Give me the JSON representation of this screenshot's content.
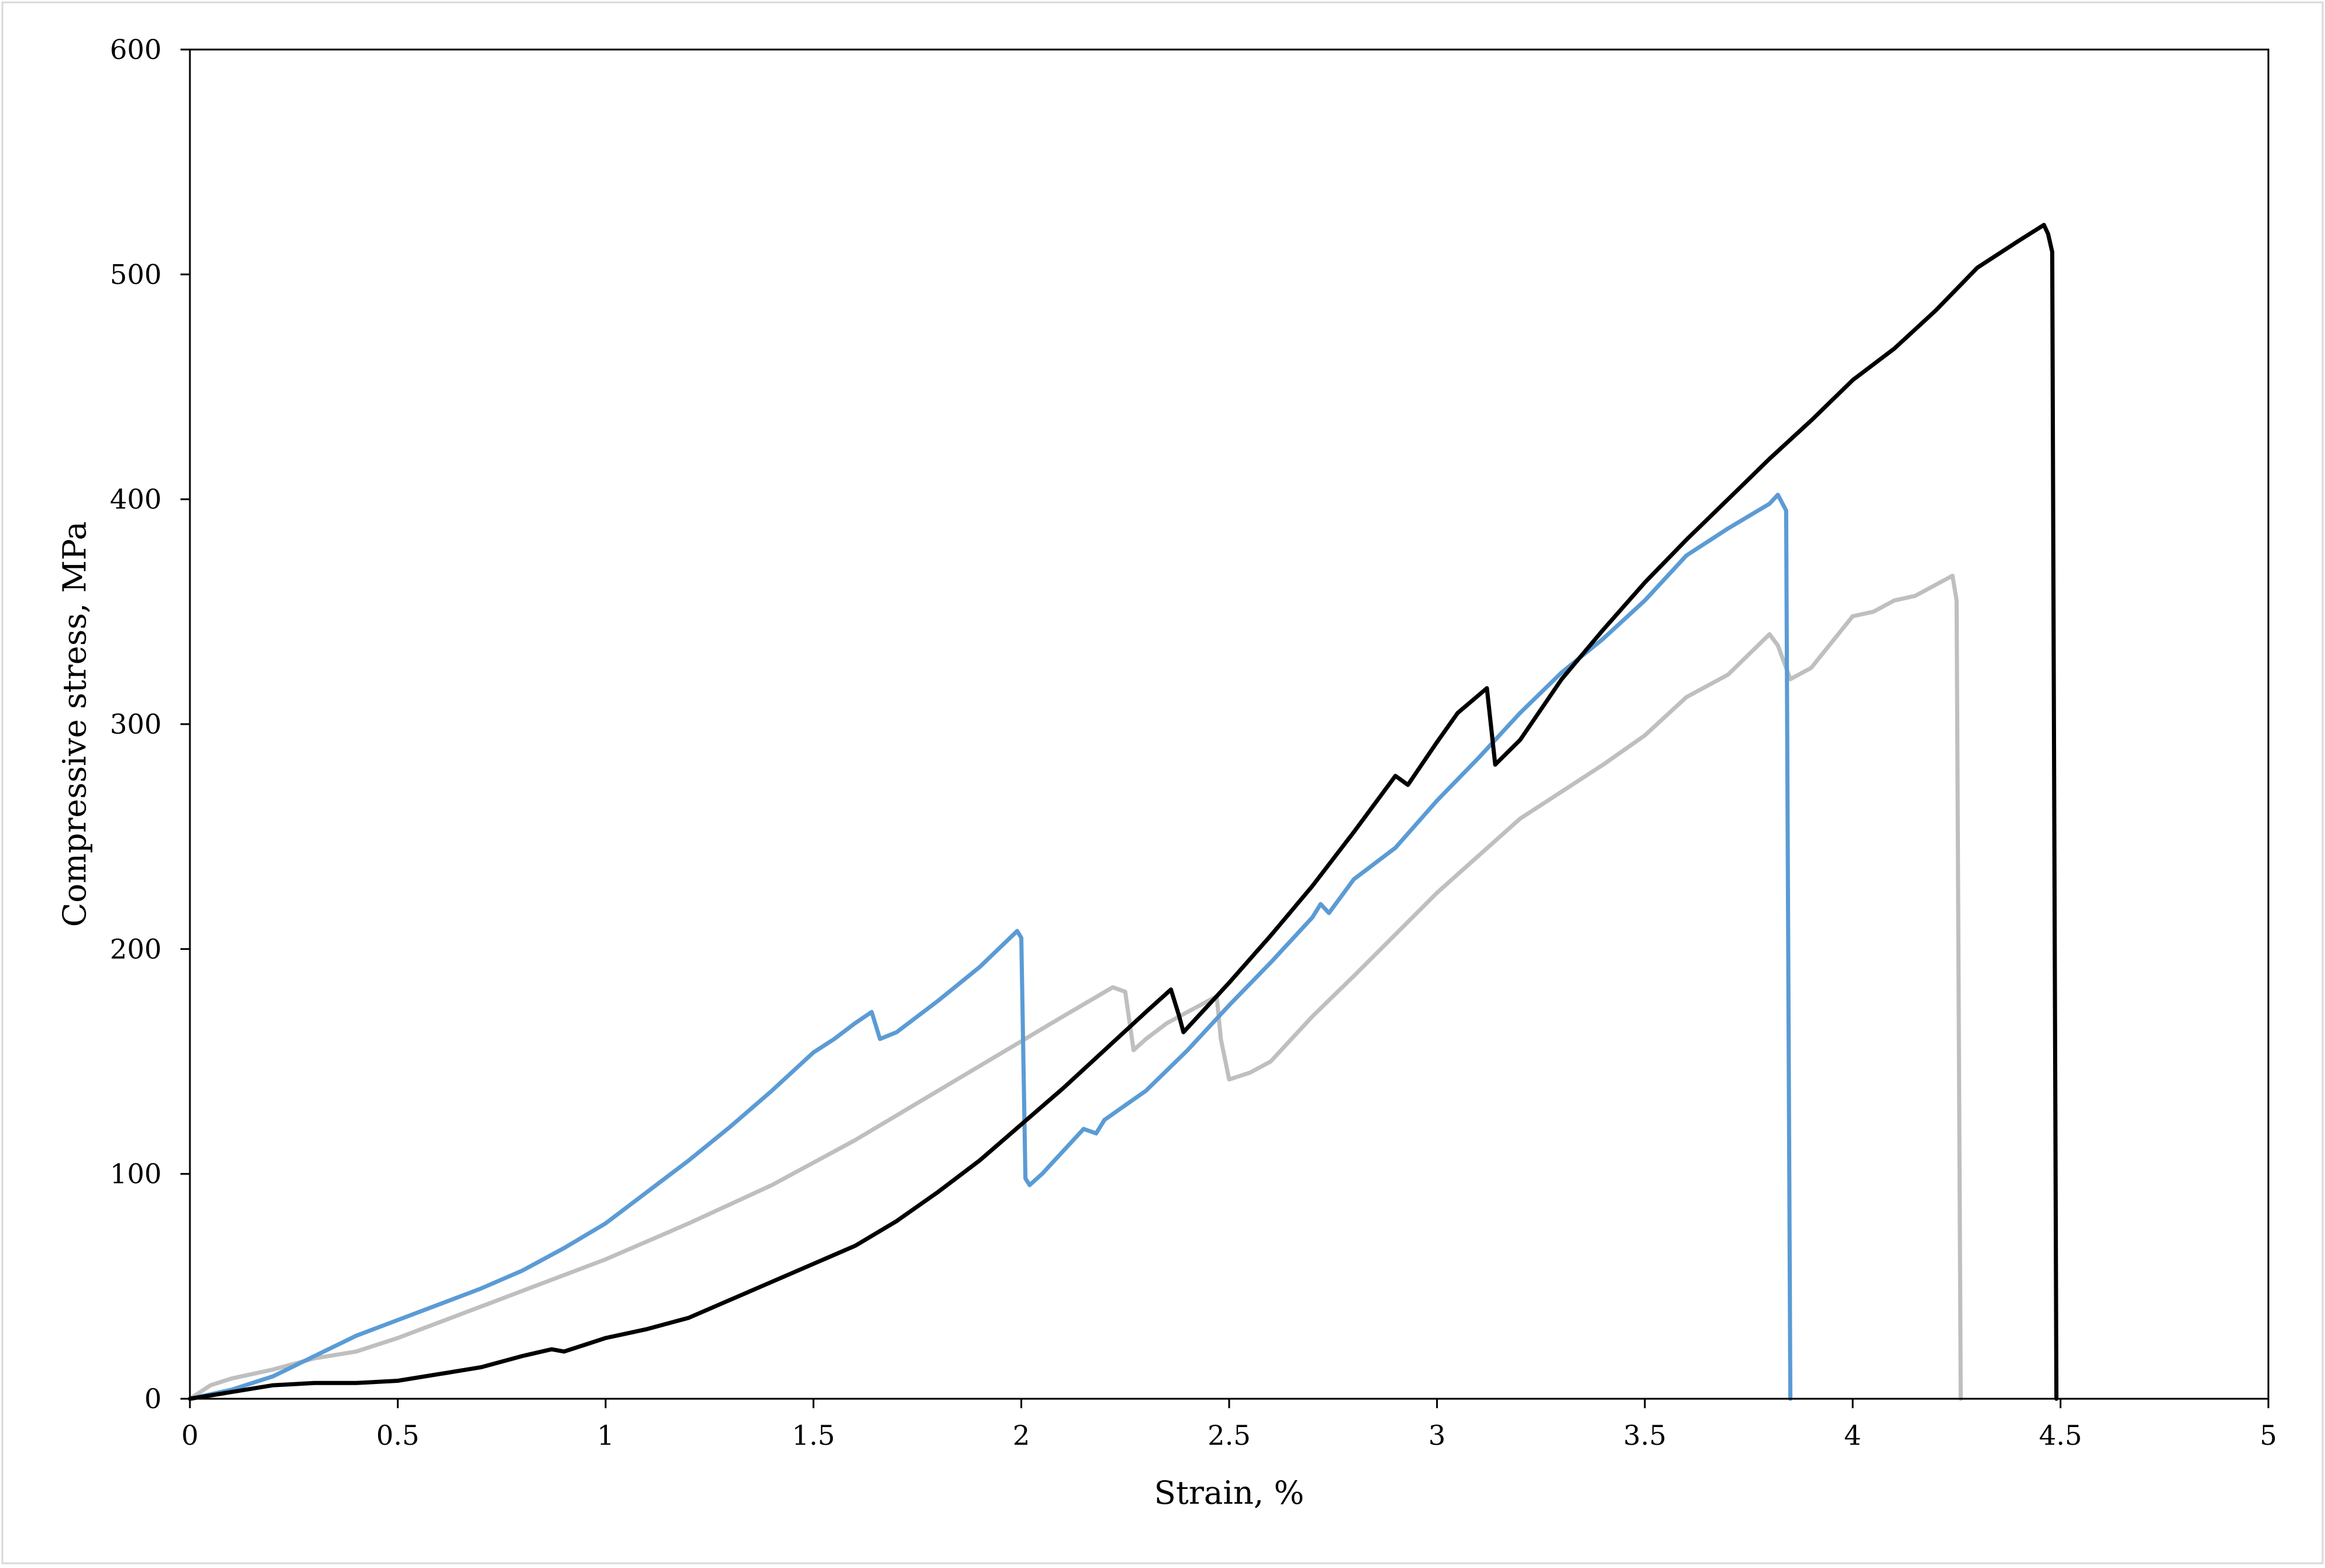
{
  "chart_data": {
    "type": "line",
    "title": "",
    "xlabel": "Strain, %",
    "ylabel": "Compressive stress, MPa",
    "xlim": [
      0,
      5
    ],
    "ylim": [
      0,
      600
    ],
    "x_ticks": [
      "0",
      "0.5",
      "1",
      "1.5",
      "2",
      "2.5",
      "3",
      "3.5",
      "4",
      "4.5",
      "5"
    ],
    "y_ticks": [
      "0",
      "100",
      "200",
      "300",
      "400",
      "500",
      "600"
    ],
    "grid": false,
    "legend": "none",
    "series": [
      {
        "color": "#bfbfbf",
        "points": [
          [
            0,
            0
          ],
          [
            0.05,
            6
          ],
          [
            0.1,
            9
          ],
          [
            0.2,
            13
          ],
          [
            0.3,
            18
          ],
          [
            0.4,
            21
          ],
          [
            0.5,
            27
          ],
          [
            0.6,
            34
          ],
          [
            0.7,
            41
          ],
          [
            0.8,
            48
          ],
          [
            1.0,
            62
          ],
          [
            1.2,
            78
          ],
          [
            1.4,
            95
          ],
          [
            1.6,
            115
          ],
          [
            1.8,
            137
          ],
          [
            2.0,
            159
          ],
          [
            2.1,
            170
          ],
          [
            2.22,
            183
          ],
          [
            2.25,
            181
          ],
          [
            2.27,
            155
          ],
          [
            2.3,
            160
          ],
          [
            2.35,
            167
          ],
          [
            2.4,
            172
          ],
          [
            2.47,
            179
          ],
          [
            2.48,
            160
          ],
          [
            2.5,
            142
          ],
          [
            2.55,
            145
          ],
          [
            2.6,
            150
          ],
          [
            2.7,
            170
          ],
          [
            2.8,
            188
          ],
          [
            3.0,
            225
          ],
          [
            3.2,
            258
          ],
          [
            3.4,
            282
          ],
          [
            3.5,
            295
          ],
          [
            3.6,
            312
          ],
          [
            3.7,
            322
          ],
          [
            3.8,
            340
          ],
          [
            3.82,
            335
          ],
          [
            3.85,
            320
          ],
          [
            3.9,
            325
          ],
          [
            4.0,
            348
          ],
          [
            4.05,
            350
          ],
          [
            4.1,
            355
          ],
          [
            4.15,
            357
          ],
          [
            4.2,
            362
          ],
          [
            4.24,
            366
          ],
          [
            4.25,
            355
          ],
          [
            4.26,
            0
          ]
        ]
      },
      {
        "color": "#5b9bd5",
        "points": [
          [
            0,
            0
          ],
          [
            0.1,
            4
          ],
          [
            0.2,
            10
          ],
          [
            0.3,
            19
          ],
          [
            0.4,
            28
          ],
          [
            0.5,
            35
          ],
          [
            0.6,
            42
          ],
          [
            0.7,
            49
          ],
          [
            0.8,
            57
          ],
          [
            0.9,
            67
          ],
          [
            1.0,
            78
          ],
          [
            1.1,
            92
          ],
          [
            1.2,
            106
          ],
          [
            1.3,
            121
          ],
          [
            1.4,
            137
          ],
          [
            1.5,
            154
          ],
          [
            1.55,
            160
          ],
          [
            1.6,
            167
          ],
          [
            1.64,
            172
          ],
          [
            1.66,
            160
          ],
          [
            1.7,
            163
          ],
          [
            1.8,
            177
          ],
          [
            1.9,
            192
          ],
          [
            1.99,
            208
          ],
          [
            2.0,
            205
          ],
          [
            2.01,
            98
          ],
          [
            2.02,
            95
          ],
          [
            2.05,
            100
          ],
          [
            2.1,
            110
          ],
          [
            2.15,
            120
          ],
          [
            2.18,
            118
          ],
          [
            2.2,
            124
          ],
          [
            2.3,
            137
          ],
          [
            2.4,
            155
          ],
          [
            2.5,
            175
          ],
          [
            2.6,
            194
          ],
          [
            2.7,
            214
          ],
          [
            2.72,
            220
          ],
          [
            2.74,
            216
          ],
          [
            2.8,
            231
          ],
          [
            2.9,
            245
          ],
          [
            3.0,
            266
          ],
          [
            3.1,
            285
          ],
          [
            3.2,
            305
          ],
          [
            3.3,
            323
          ],
          [
            3.4,
            338
          ],
          [
            3.5,
            355
          ],
          [
            3.6,
            375
          ],
          [
            3.7,
            387
          ],
          [
            3.8,
            398
          ],
          [
            3.82,
            402
          ],
          [
            3.84,
            395
          ],
          [
            3.85,
            0
          ]
        ]
      },
      {
        "color": "#000000",
        "points": [
          [
            0,
            0
          ],
          [
            0.1,
            3
          ],
          [
            0.2,
            6
          ],
          [
            0.3,
            7
          ],
          [
            0.4,
            7
          ],
          [
            0.5,
            8
          ],
          [
            0.6,
            11
          ],
          [
            0.7,
            14
          ],
          [
            0.8,
            19
          ],
          [
            0.87,
            22
          ],
          [
            0.9,
            21
          ],
          [
            0.95,
            24
          ],
          [
            1.0,
            27
          ],
          [
            1.05,
            29
          ],
          [
            1.1,
            31
          ],
          [
            1.2,
            36
          ],
          [
            1.3,
            44
          ],
          [
            1.4,
            52
          ],
          [
            1.5,
            60
          ],
          [
            1.6,
            68
          ],
          [
            1.7,
            79
          ],
          [
            1.8,
            92
          ],
          [
            1.9,
            106
          ],
          [
            2.0,
            122
          ],
          [
            2.1,
            138
          ],
          [
            2.2,
            155
          ],
          [
            2.3,
            172
          ],
          [
            2.36,
            182
          ],
          [
            2.38,
            170
          ],
          [
            2.39,
            163
          ],
          [
            2.5,
            185
          ],
          [
            2.6,
            206
          ],
          [
            2.7,
            228
          ],
          [
            2.8,
            252
          ],
          [
            2.9,
            277
          ],
          [
            2.93,
            273
          ],
          [
            3.0,
            292
          ],
          [
            3.05,
            305
          ],
          [
            3.12,
            316
          ],
          [
            3.14,
            282
          ],
          [
            3.2,
            293
          ],
          [
            3.3,
            320
          ],
          [
            3.4,
            342
          ],
          [
            3.5,
            363
          ],
          [
            3.6,
            382
          ],
          [
            3.7,
            400
          ],
          [
            3.8,
            418
          ],
          [
            3.9,
            435
          ],
          [
            4.0,
            453
          ],
          [
            4.1,
            467
          ],
          [
            4.2,
            484
          ],
          [
            4.3,
            503
          ],
          [
            4.4,
            515
          ],
          [
            4.46,
            522
          ],
          [
            4.47,
            518
          ],
          [
            4.48,
            510
          ],
          [
            4.49,
            0
          ]
        ]
      }
    ]
  }
}
